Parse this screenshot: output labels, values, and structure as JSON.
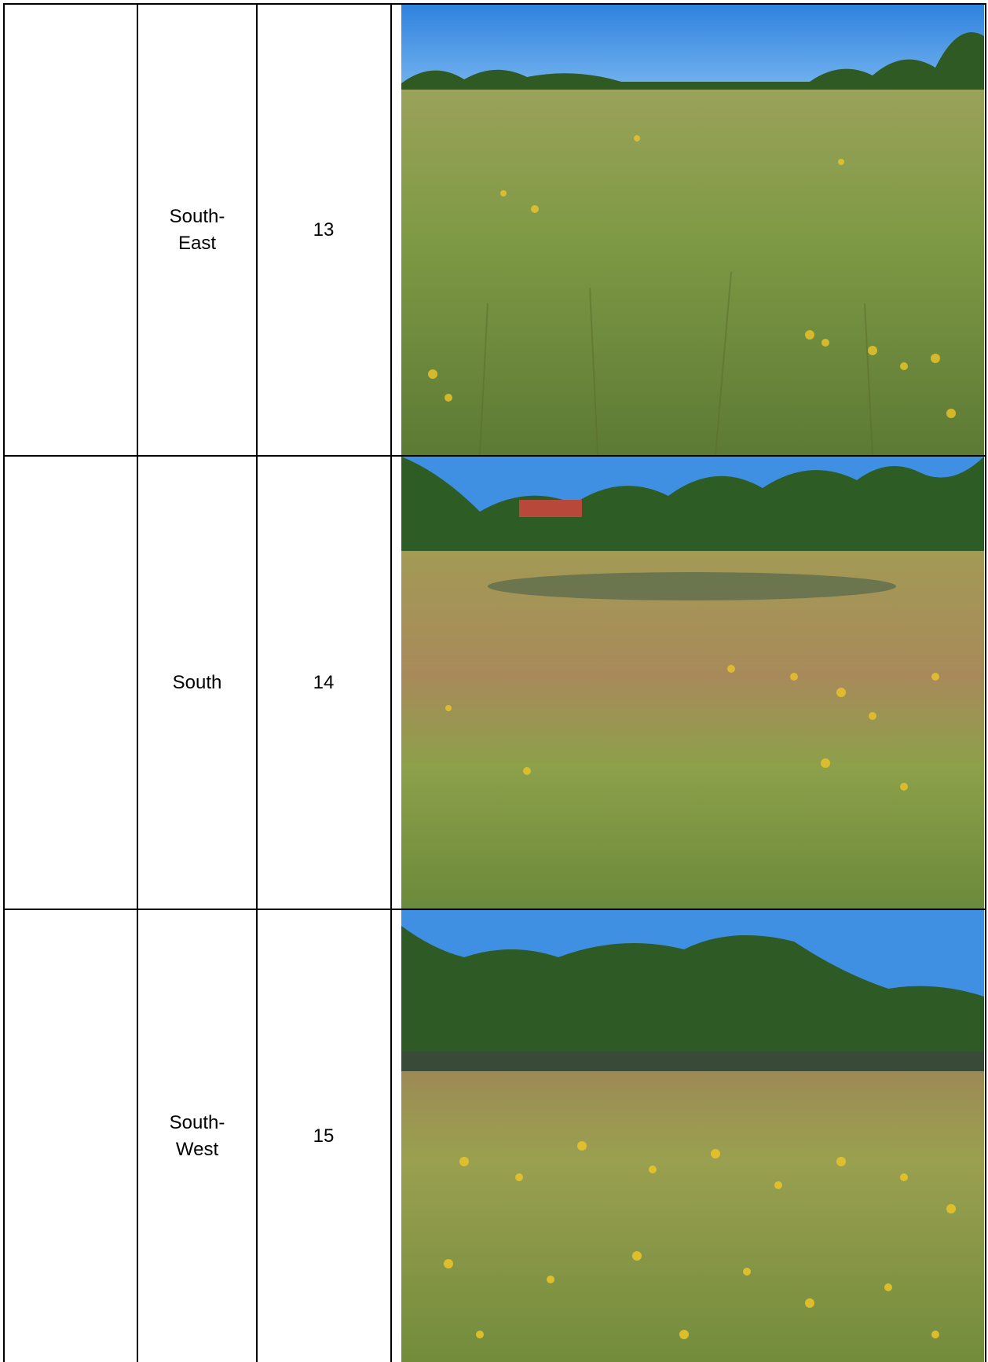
{
  "table": {
    "rows": [
      {
        "direction": "South-\nEast",
        "number": "13",
        "photo": "grassland-field-photo"
      },
      {
        "direction": "South",
        "number": "14",
        "photo": "wetland-grass-trees-photo"
      },
      {
        "direction": "South-\nWest",
        "number": "15",
        "photo": "wetland-yellow-flowers-photo"
      }
    ]
  },
  "colors": {
    "border": "#000000",
    "sky": "#3f8fe3",
    "grass": "#7f9a45",
    "flower": "#e8c22a"
  }
}
